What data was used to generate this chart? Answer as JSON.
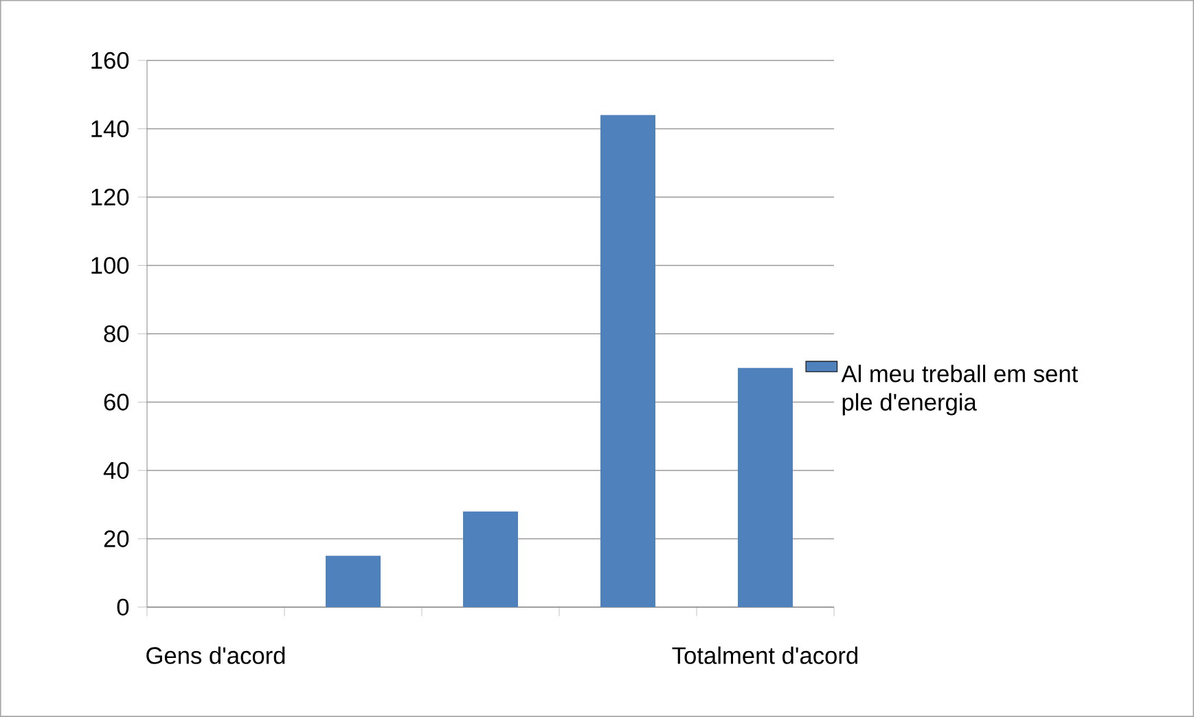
{
  "chart_data": {
    "type": "bar",
    "categories": [
      "Gens d'acord",
      null,
      null,
      null,
      "Totalment d'acord"
    ],
    "series": [
      {
        "name": "Al meu treball em sent ple d'energia",
        "color": "#4f81bd",
        "values": [
          0,
          15,
          28,
          144,
          70
        ]
      }
    ],
    "ylim": [
      0,
      160
    ],
    "yticks": [
      0,
      20,
      40,
      60,
      80,
      100,
      120,
      140,
      160
    ],
    "grid": "y",
    "legend": "right"
  }
}
